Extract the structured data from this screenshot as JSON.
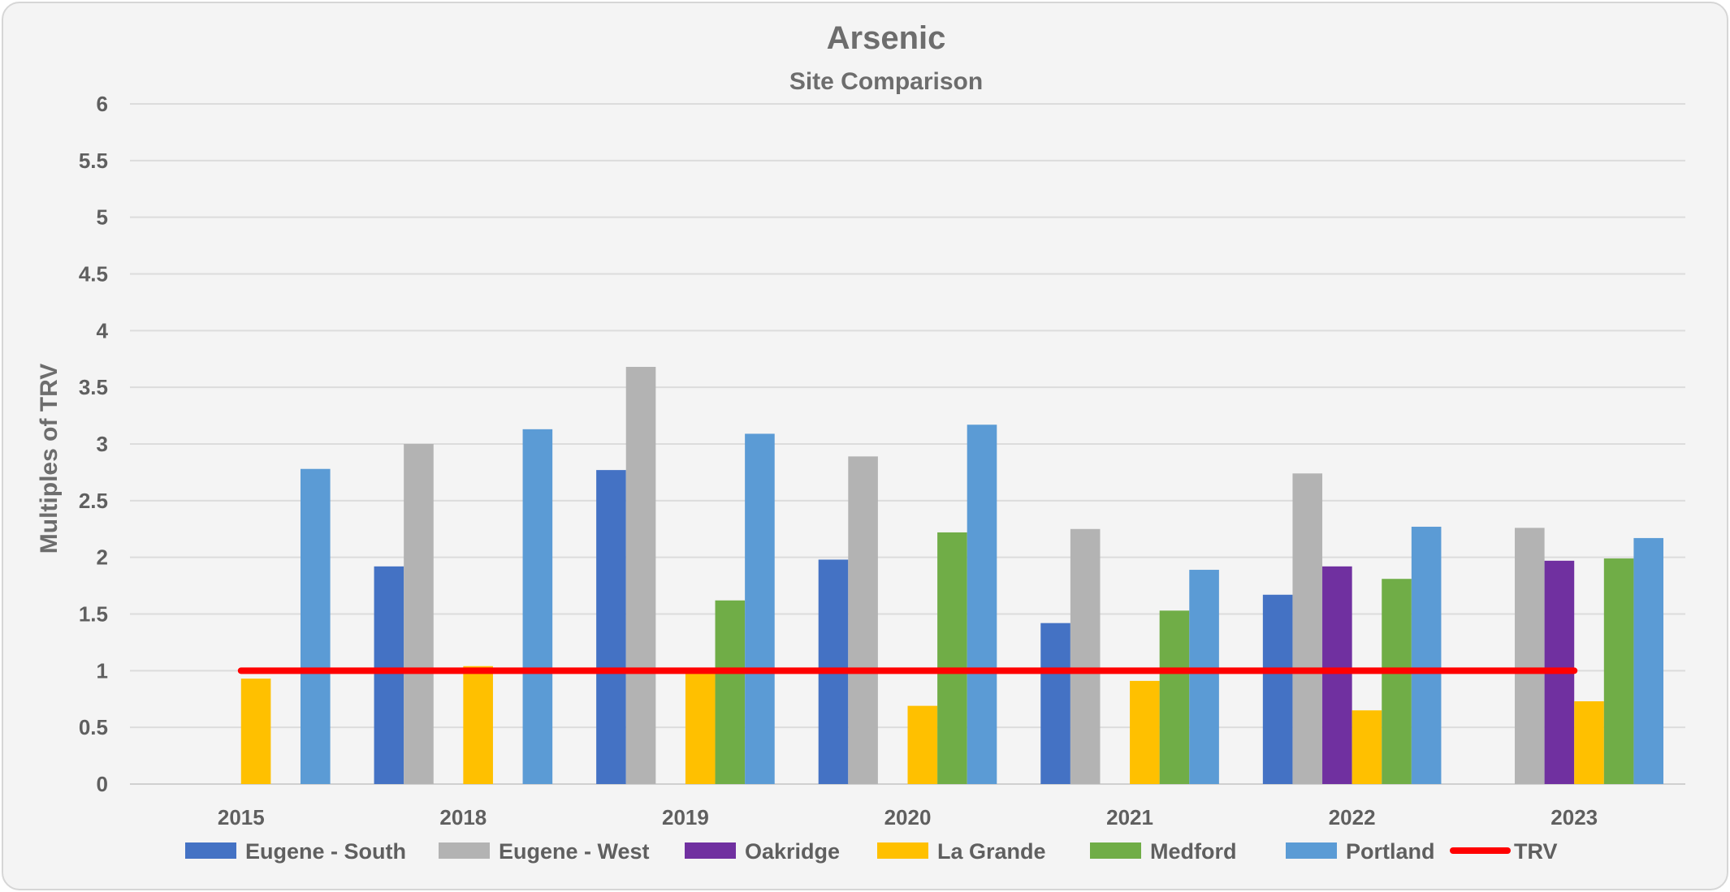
{
  "chart_data": {
    "type": "bar",
    "title": "Arsenic",
    "subtitle": "Site Comparison",
    "xlabel": "",
    "ylabel": "Multiples of TRV",
    "ylim": [
      0,
      6
    ],
    "yticks": [
      0,
      0.5,
      1,
      1.5,
      2,
      2.5,
      3,
      3.5,
      4,
      4.5,
      5,
      5.5,
      6
    ],
    "ytick_labels": [
      "0",
      "0.5",
      "1",
      "1.5",
      "2",
      "2.5",
      "3",
      "3.5",
      "4",
      "4.5",
      "5",
      "5.5",
      "6"
    ],
    "grid": true,
    "legend_position": "bottom",
    "categories": [
      "2015",
      "2018",
      "2019",
      "2020",
      "2021",
      "2022",
      "2023"
    ],
    "series": [
      {
        "name": "Eugene - South",
        "color": "#4472c4",
        "values": [
          null,
          1.92,
          2.77,
          1.98,
          1.42,
          1.67,
          null
        ]
      },
      {
        "name": "Eugene - West",
        "color": "#b3b3b3",
        "values": [
          null,
          3.0,
          3.68,
          2.89,
          2.25,
          2.74,
          2.26
        ]
      },
      {
        "name": "Oakridge",
        "color": "#7030a0",
        "values": [
          null,
          null,
          null,
          null,
          null,
          1.92,
          1.97
        ]
      },
      {
        "name": "La Grande",
        "color": "#ffc000",
        "values": [
          0.93,
          1.04,
          0.99,
          0.69,
          0.91,
          0.65,
          0.73
        ]
      },
      {
        "name": "Medford",
        "color": "#70ad47",
        "values": [
          null,
          null,
          1.62,
          2.22,
          1.53,
          1.81,
          1.99
        ]
      },
      {
        "name": "Portland",
        "color": "#5b9bd5",
        "values": [
          2.78,
          3.13,
          3.09,
          3.17,
          1.89,
          2.27,
          2.17
        ]
      }
    ],
    "reference_line": {
      "name": "TRV",
      "color": "#ff0000",
      "value": 1
    }
  }
}
